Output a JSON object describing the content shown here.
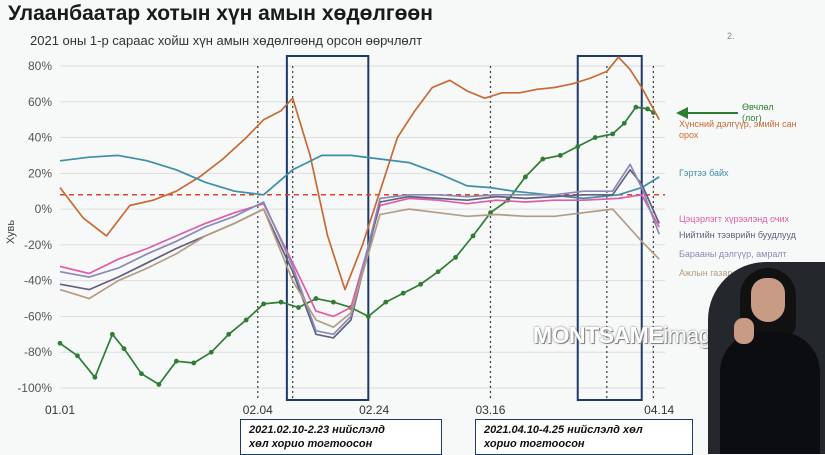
{
  "title": "Улаанбаатар хотын хүн амын хөдөлгөөн",
  "subtitle": "2021 оны 1-р сараас хойш хүн амын хөдөлгөөнд орсон өөрчлөлт",
  "top_mark": "2.",
  "ylabel": "Хувь",
  "watermark_bold": "MONTSAME",
  "watermark_light": "images",
  "annotations": [
    {
      "line1": "2021.02.10-2.23 нийслэлд",
      "line2": "хөл хорио тогтоосон"
    },
    {
      "line1": "2021.04.10-4.25 нийслэлд хөл",
      "line2": "хорио тогтоосон"
    }
  ],
  "colors": {
    "box": "#1d3a6b",
    "baseline": "#e0402a",
    "grid": "#dddddd",
    "vline": "#444444"
  },
  "chart_data": {
    "type": "line",
    "title": "Улаанбаатар хотын хүн амын хөдөлгөөн",
    "subtitle": "2021 оны 1-р сараас хойш хүн амын хөдөлгөөнд орсон өөрчлөлт",
    "ylabel": "Хувь",
    "ylim": [
      -100,
      80
    ],
    "yticks": [
      80,
      60,
      40,
      20,
      0,
      -20,
      -40,
      -60,
      -80,
      -100
    ],
    "ytick_labels": [
      "80%",
      "60%",
      "40%",
      "20%",
      "0%",
      "-20%",
      "-40%",
      "-60%",
      "-80%",
      "-100%"
    ],
    "xlim": [
      0,
      104
    ],
    "xticks": [
      0,
      34,
      54,
      74,
      103
    ],
    "xtick_labels": [
      "01.01",
      "02.04",
      "02.24",
      "03.16",
      "04.14"
    ],
    "grid": true,
    "baseline": 8,
    "vlines": [
      34,
      40,
      53,
      74,
      94,
      102
    ],
    "shaded_boxes": [
      [
        39,
        53
      ],
      [
        89,
        100
      ]
    ],
    "series": [
      {
        "name": "Өвчлөл (лог)",
        "color": "#2e7d32",
        "markers": true,
        "x": [
          0,
          3,
          6,
          9,
          11,
          14,
          17,
          20,
          23,
          26,
          29,
          32,
          35,
          38,
          41,
          44,
          47,
          50,
          53,
          56,
          59,
          62,
          65,
          68,
          71,
          74,
          77,
          80,
          83,
          86,
          89,
          92,
          95,
          97,
          99,
          101,
          102
        ],
        "y": [
          -75,
          -82,
          -94,
          -70,
          -78,
          -92,
          -98,
          -85,
          -86,
          -80,
          -70,
          -62,
          -53,
          -52,
          -55,
          -50,
          -52,
          -55,
          -60,
          -52,
          -47,
          -42,
          -35,
          -27,
          -15,
          -2,
          5,
          18,
          28,
          30,
          35,
          40,
          42,
          48,
          57,
          56,
          54
        ]
      },
      {
        "name": "Хүнсний дэлгүүр, эмийн сан орох",
        "color": "#c86a35",
        "markers": false,
        "x": [
          0,
          4,
          8,
          12,
          16,
          20,
          24,
          28,
          32,
          35,
          38,
          40,
          43,
          46,
          49,
          52,
          55,
          58,
          61,
          64,
          67,
          70,
          73,
          76,
          79,
          82,
          85,
          88,
          91,
          94,
          96,
          98,
          100,
          103
        ],
        "y": [
          12,
          -5,
          -15,
          2,
          5,
          10,
          18,
          28,
          40,
          50,
          55,
          62,
          30,
          -15,
          -45,
          -20,
          10,
          40,
          55,
          68,
          72,
          66,
          62,
          65,
          65,
          67,
          68,
          70,
          73,
          77,
          85,
          78,
          68,
          50
        ]
      },
      {
        "name": "Гэртээ байх",
        "color": "#3d8fa8",
        "markers": false,
        "x": [
          0,
          5,
          10,
          15,
          20,
          25,
          30,
          35,
          40,
          45,
          50,
          55,
          60,
          65,
          70,
          74,
          78,
          84,
          90,
          96,
          100,
          103
        ],
        "y": [
          27,
          29,
          30,
          27,
          22,
          15,
          10,
          8,
          22,
          30,
          30,
          28,
          26,
          20,
          13,
          12,
          10,
          8,
          6,
          8,
          12,
          18
        ]
      },
      {
        "name": "Цэцэрлэгт хүрээлэнд очих",
        "color": "#e05ca8",
        "markers": false,
        "x": [
          0,
          5,
          10,
          15,
          20,
          25,
          30,
          35,
          40,
          44,
          47,
          50,
          55,
          60,
          65,
          70,
          75,
          80,
          85,
          90,
          96,
          100,
          103
        ],
        "y": [
          -32,
          -36,
          -28,
          -22,
          -15,
          -8,
          -2,
          3,
          -30,
          -57,
          -60,
          -55,
          2,
          6,
          5,
          3,
          5,
          4,
          5,
          5,
          6,
          8,
          -10
        ]
      },
      {
        "name": "Нийтийн тээврийн буудлууд",
        "color": "#606080",
        "markers": false,
        "x": [
          0,
          5,
          10,
          15,
          20,
          25,
          30,
          35,
          40,
          44,
          47,
          50,
          55,
          60,
          65,
          70,
          75,
          80,
          85,
          90,
          95,
          98,
          100,
          103
        ],
        "y": [
          -42,
          -45,
          -38,
          -30,
          -22,
          -15,
          -8,
          0,
          -35,
          -70,
          -72,
          -62,
          4,
          7,
          6,
          5,
          7,
          6,
          7,
          8,
          8,
          22,
          14,
          -8
        ]
      },
      {
        "name": "Барааны дэлгүүр, амралт",
        "color": "#8a8ab8",
        "markers": false,
        "x": [
          0,
          5,
          10,
          15,
          20,
          25,
          30,
          35,
          40,
          44,
          47,
          50,
          55,
          60,
          65,
          70,
          75,
          80,
          85,
          90,
          95,
          98,
          100,
          103
        ],
        "y": [
          -35,
          -38,
          -33,
          -25,
          -18,
          -10,
          -4,
          4,
          -32,
          -68,
          -70,
          -60,
          6,
          8,
          8,
          7,
          8,
          8,
          8,
          10,
          10,
          25,
          12,
          -14
        ]
      },
      {
        "name": "Ажлын газар",
        "color": "#b49c82",
        "markers": false,
        "x": [
          0,
          5,
          10,
          15,
          20,
          25,
          30,
          35,
          40,
          44,
          47,
          50,
          55,
          60,
          65,
          70,
          75,
          80,
          85,
          90,
          95,
          100,
          103
        ],
        "y": [
          -45,
          -50,
          -40,
          -33,
          -25,
          -15,
          -8,
          0,
          -40,
          -62,
          -66,
          -58,
          -3,
          0,
          -2,
          -4,
          -3,
          -4,
          -4,
          -2,
          0,
          -18,
          -28
        ]
      }
    ]
  }
}
